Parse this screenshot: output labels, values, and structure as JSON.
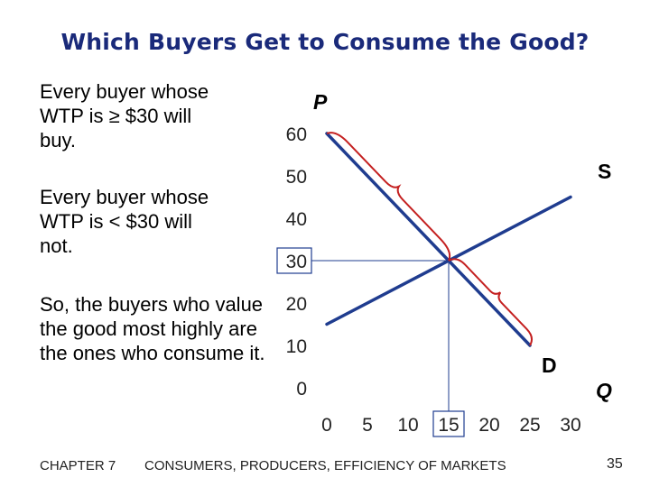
{
  "title": "Which Buyers Get to Consume the Good?",
  "text": {
    "para1": "Every buyer whose WTP is ≥ $30 will buy.",
    "para2": "Every buyer whose WTP is < $30 will not.",
    "para3": "So, the buyers who value the good most highly are the ones who consume it."
  },
  "footer": {
    "chapter": "CHAPTER 7",
    "title": "CONSUMERS, PRODUCERS, EFFICIENCY OF MARKETS",
    "page": "35"
  },
  "chart_data": {
    "type": "line",
    "xlabel": "Q",
    "ylabel": "P",
    "xlim": [
      0,
      30
    ],
    "ylim": [
      0,
      60
    ],
    "x_ticks": [
      "0",
      "5",
      "10",
      "15",
      "20",
      "25",
      "30"
    ],
    "y_ticks": [
      "0",
      "10",
      "20",
      "30",
      "40",
      "50",
      "60"
    ],
    "highlighted_x_tick": "15",
    "highlighted_y_tick": "30",
    "grid": false,
    "series": [
      {
        "name": "S",
        "points": [
          [
            0,
            15
          ],
          [
            30,
            45
          ]
        ],
        "color": "#1f3c8f"
      },
      {
        "name": "D",
        "points": [
          [
            0,
            60
          ],
          [
            25,
            10
          ]
        ],
        "color": "#1f3c8f"
      }
    ],
    "equilibrium": {
      "q": 15,
      "p": 30
    },
    "annotations": {
      "bracket_wtp_above": {
        "from": [
          0,
          60
        ],
        "to": [
          15,
          30
        ],
        "color": "#c42020"
      },
      "bracket_wtp_below": {
        "from": [
          15,
          30
        ],
        "to": [
          25,
          10
        ],
        "color": "#c42020"
      }
    }
  }
}
